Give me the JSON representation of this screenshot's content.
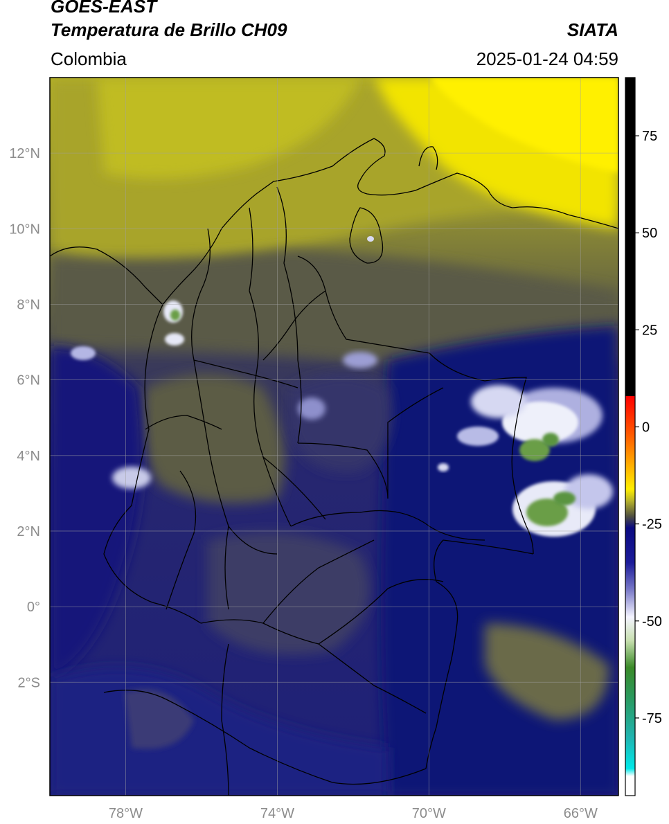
{
  "header": {
    "satellite": "GOES-EAST",
    "product": "Temperatura de Brillo CH09",
    "agency": "SIATA",
    "region": "Colombia",
    "timestamp": "2025-01-24 04:59"
  },
  "map": {
    "lon_range": [
      -80.0,
      -65.0
    ],
    "lat_range": [
      -5.0,
      14.0
    ],
    "lon_ticks": [
      {
        "value": -78,
        "label": "78°W"
      },
      {
        "value": -74,
        "label": "74°W"
      },
      {
        "value": -70,
        "label": "70°W"
      },
      {
        "value": -66,
        "label": "66°W"
      }
    ],
    "lat_ticks": [
      {
        "value": 12,
        "label": "12°N"
      },
      {
        "value": 10,
        "label": "10°N"
      },
      {
        "value": 8,
        "label": "8°N"
      },
      {
        "value": 6,
        "label": "6°N"
      },
      {
        "value": 4,
        "label": "4°N"
      },
      {
        "value": 2,
        "label": "2°N"
      },
      {
        "value": 0,
        "label": "0°"
      },
      {
        "value": -2,
        "label": "2°S"
      }
    ],
    "colors": {
      "ocean_north": "#c8c420",
      "land_mid": "#5f5f42",
      "dark_blue": "#1a1c7a",
      "yellow": "#f5e800",
      "cold_white": "#e8ecf4",
      "cold_green": "#6a9e46"
    }
  },
  "colorbar": {
    "range": [
      -95,
      90
    ],
    "ticks": [
      {
        "value": 75,
        "label": "75"
      },
      {
        "value": 50,
        "label": "50"
      },
      {
        "value": 25,
        "label": "25"
      },
      {
        "value": 0,
        "label": "0"
      },
      {
        "value": -25,
        "label": "-25"
      },
      {
        "value": -50,
        "label": "-50"
      },
      {
        "value": -75,
        "label": "-75"
      }
    ],
    "stops": [
      {
        "value": 90,
        "color": "#000000"
      },
      {
        "value": 8,
        "color": "#000000"
      },
      {
        "value": 7.9,
        "color": "#ff0000"
      },
      {
        "value": -2,
        "color": "#ff5a00"
      },
      {
        "value": -10,
        "color": "#ffb000"
      },
      {
        "value": -16,
        "color": "#ffee00"
      },
      {
        "value": -19,
        "color": "#b8b42a"
      },
      {
        "value": -23,
        "color": "#505040"
      },
      {
        "value": -26,
        "color": "#0a0a80"
      },
      {
        "value": -35,
        "color": "#1c1c9a"
      },
      {
        "value": -42,
        "color": "#7a7ac8"
      },
      {
        "value": -49,
        "color": "#f4f4ff"
      },
      {
        "value": -55,
        "color": "#c8e0b0"
      },
      {
        "value": -62,
        "color": "#3a8a28"
      },
      {
        "value": -70,
        "color": "#2a9a60"
      },
      {
        "value": -80,
        "color": "#20b4b0"
      },
      {
        "value": -88,
        "color": "#00e8e8"
      },
      {
        "value": -90,
        "color": "#ffffff"
      },
      {
        "value": -95,
        "color": "#ffffff"
      }
    ]
  }
}
